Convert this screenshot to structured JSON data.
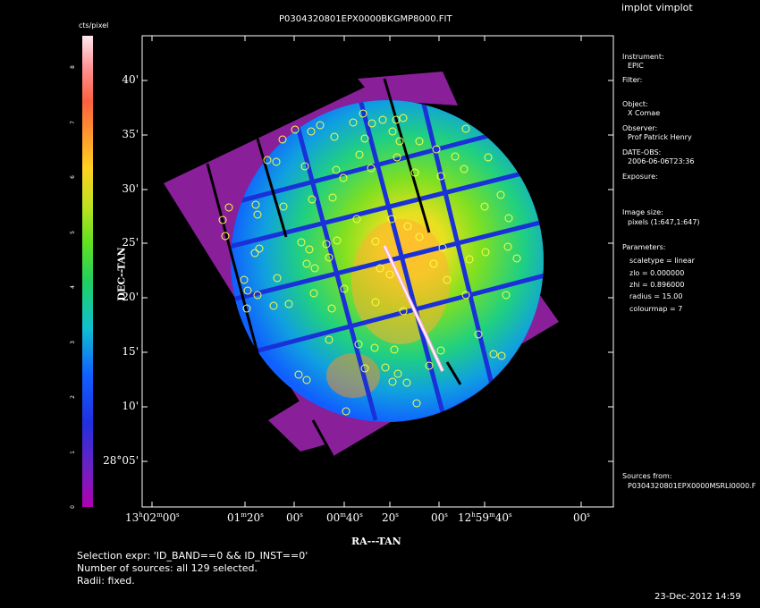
{
  "app_title": "implot vimplot",
  "image_title": "P0304320801EPX0000BKGMP8000.FIT",
  "colorbar": {
    "unit_label": "cts/pixel",
    "ticks": [
      "0",
      "1",
      "2",
      "3",
      "4",
      "5",
      "6",
      "7",
      "8"
    ]
  },
  "axes": {
    "ylabel": "DEC--TAN",
    "xlabel": "RA---TAN",
    "y_ticks": [
      {
        "main": "40'"
      },
      {
        "main": "35'"
      },
      {
        "main": "30'"
      },
      {
        "main": "25'"
      },
      {
        "main": "20'"
      },
      {
        "main": "15'"
      },
      {
        "main": "10'"
      },
      {
        "main": "28°05'"
      }
    ],
    "x_ticks": [
      {
        "parts": [
          [
            "13",
            ""
          ],
          [
            "h",
            "s"
          ],
          [
            "02",
            ""
          ],
          [
            "m",
            "s"
          ],
          [
            "00",
            ""
          ],
          [
            "s",
            "s"
          ]
        ]
      },
      {
        "parts": [
          [
            "01",
            ""
          ],
          [
            "m",
            "s"
          ],
          [
            "20",
            ""
          ],
          [
            "s",
            "s"
          ]
        ]
      },
      {
        "parts": [
          [
            "00",
            ""
          ],
          [
            "s",
            "s"
          ]
        ]
      },
      {
        "parts": [
          [
            "00",
            ""
          ],
          [
            "m",
            "s"
          ],
          [
            "40",
            ""
          ],
          [
            "s",
            "s"
          ]
        ]
      },
      {
        "parts": [
          [
            "20",
            ""
          ],
          [
            "s",
            "s"
          ]
        ]
      },
      {
        "parts": [
          [
            "00",
            ""
          ],
          [
            "s",
            "s"
          ]
        ]
      },
      {
        "parts": [
          [
            "12",
            ""
          ],
          [
            "h",
            "s"
          ],
          [
            "59",
            ""
          ],
          [
            "m",
            "s"
          ],
          [
            "40",
            ""
          ],
          [
            "s",
            "s"
          ]
        ]
      },
      {
        "parts": [
          [
            "00",
            ""
          ],
          [
            "s",
            "s"
          ]
        ]
      }
    ]
  },
  "info": {
    "instrument_label": "Instrument:",
    "instrument_value": "EPIC",
    "filter_label": "Filter:",
    "object_label": "Object:",
    "object_value": "X Comae",
    "observer_label": "Observer:",
    "observer_value": "Prof Patrick Henry",
    "date_label": "DATE-OBS:",
    "date_value": "2006-06-06T23:36",
    "exposure_label": "Exposure:",
    "image_size_label": "Image size:",
    "image_size_value": "pixels (1:647,1:647)",
    "parameters_label": "Parameters:",
    "param_scaletype": "scaletype = linear",
    "param_zlo": "zlo = 0.000000",
    "param_zhi": "zhi = 0.896000",
    "param_radius": "radius = 15.00",
    "param_colourmap": "colourmap = 7",
    "sources_label": "Sources from:",
    "sources_value": "P0304320801EPX0000MSRLI0000.F"
  },
  "footer": {
    "selection": "Selection expr: 'ID_BAND==0 && ID_INST==0'",
    "number": "Number of sources: all 129 selected.",
    "radii": "Radii: fixed."
  },
  "timestamp": "23-Dec-2012 14:59"
}
